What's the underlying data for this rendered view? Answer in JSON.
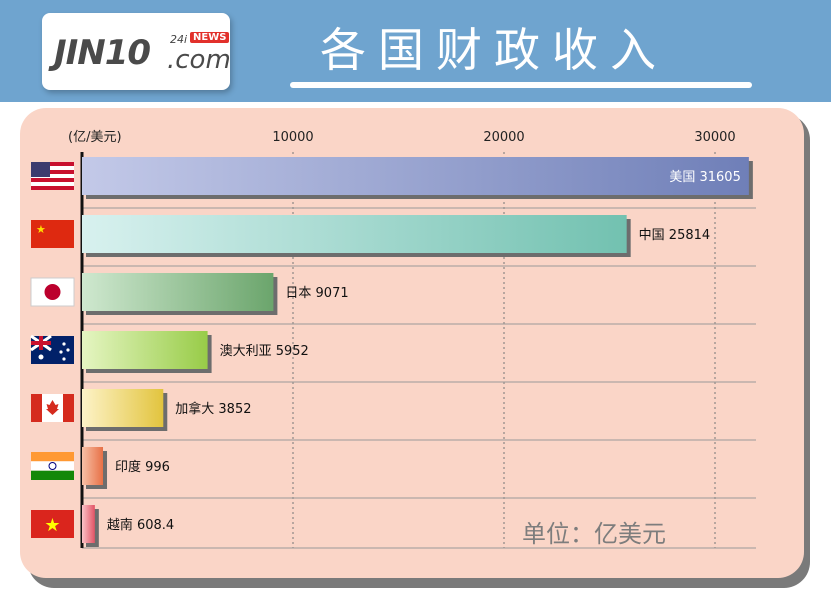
{
  "header": {
    "logo": {
      "main": "JIN10",
      "com": ".com",
      "tag": "24i",
      "news": "NEWS"
    },
    "title": "各国财政收入"
  },
  "chart_data": {
    "type": "bar",
    "orientation": "horizontal",
    "unit_label": "(亿/美元)",
    "unit_note": "单位：亿美元",
    "xlim": [
      0,
      32000
    ],
    "ticks": [
      10000,
      20000,
      30000
    ],
    "grid": true,
    "categories": [
      "美国",
      "中国",
      "日本",
      "澳大利亚",
      "加拿大",
      "印度",
      "越南"
    ],
    "values": [
      31605,
      25814,
      9071,
      5952,
      3852,
      996,
      608.4
    ],
    "value_labels": [
      "美国 31605",
      "中国 25814",
      "日本 9071",
      "澳大利亚 5952",
      "加拿大 3852",
      "印度 996",
      "越南 608.4"
    ],
    "bar_gradients": [
      [
        "#c3c9e8",
        "#6f7fb8"
      ],
      [
        "#d8f1ef",
        "#72c1b0"
      ],
      [
        "#cfe8cf",
        "#6ba56c"
      ],
      [
        "#e5f5c2",
        "#98cc48"
      ],
      [
        "#fdf3c8",
        "#e2c43e"
      ],
      [
        "#f7c1a7",
        "#e77046"
      ],
      [
        "#f9c3c8",
        "#e25365"
      ]
    ],
    "flags": [
      "us-flag-icon",
      "cn-flag-icon",
      "jp-flag-icon",
      "au-flag-icon",
      "ca-flag-icon",
      "in-flag-icon",
      "vn-flag-icon"
    ]
  }
}
